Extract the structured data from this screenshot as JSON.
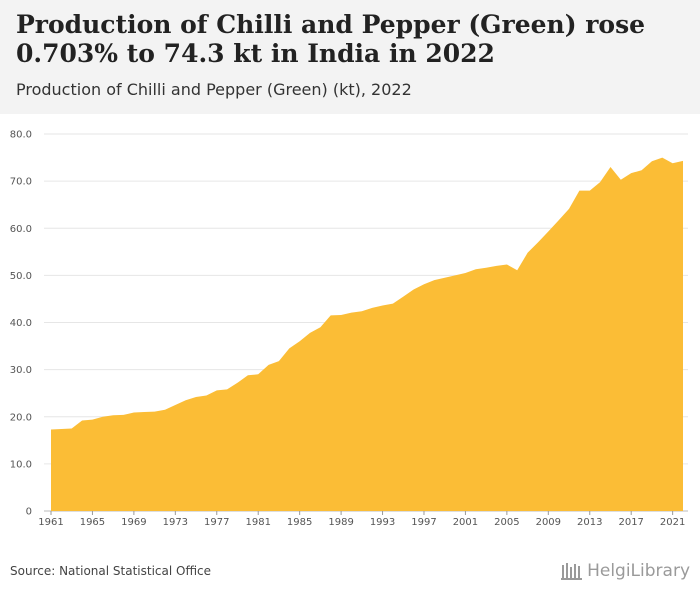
{
  "header": {
    "title": "Production of Chilli and Pepper (Green) rose 0.703% to 74.3 kt in India in 2022",
    "subtitle": "Production of Chilli and Pepper (Green) (kt), 2022"
  },
  "footer": {
    "source": "Source: National Statistical Office",
    "logo_text": "HelgiLibrary"
  },
  "colors": {
    "area_fill": "#fbbd36",
    "grid": "#e6e6e6",
    "header_bg": "#f3f3f3"
  },
  "chart_data": {
    "type": "area",
    "title": "Production of Chilli and Pepper (Green) (kt), 2022",
    "xlabel": "",
    "ylabel": "",
    "unit": "kt",
    "grid": true,
    "ylim": [
      0,
      80
    ],
    "yticks": [
      "0",
      "10.0",
      "20.0",
      "30.0",
      "40.0",
      "50.0",
      "60.0",
      "70.0",
      "80.0"
    ],
    "xticks": [
      "1961",
      "1965",
      "1969",
      "1973",
      "1977",
      "1981",
      "1985",
      "1989",
      "1993",
      "1997",
      "2001",
      "2005",
      "2009",
      "2013",
      "2017",
      "2021"
    ],
    "x": [
      1961,
      1962,
      1963,
      1964,
      1965,
      1966,
      1967,
      1968,
      1969,
      1970,
      1971,
      1972,
      1973,
      1974,
      1975,
      1976,
      1977,
      1978,
      1979,
      1980,
      1981,
      1982,
      1983,
      1984,
      1985,
      1986,
      1987,
      1988,
      1989,
      1990,
      1991,
      1992,
      1993,
      1994,
      1995,
      1996,
      1997,
      1998,
      1999,
      2000,
      2001,
      2002,
      2003,
      2004,
      2005,
      2006,
      2007,
      2008,
      2009,
      2010,
      2011,
      2012,
      2013,
      2014,
      2015,
      2016,
      2017,
      2018,
      2019,
      2020,
      2021,
      2022
    ],
    "values": [
      17.3,
      17.4,
      17.5,
      19.2,
      19.4,
      20.0,
      20.3,
      20.4,
      20.9,
      21.0,
      21.1,
      21.5,
      22.5,
      23.5,
      24.2,
      24.5,
      25.6,
      25.8,
      27.2,
      28.8,
      29.0,
      31.0,
      31.8,
      34.5,
      36.0,
      37.8,
      39.0,
      41.5,
      41.6,
      42.1,
      42.4,
      43.1,
      43.6,
      44.0,
      45.5,
      47.0,
      48.1,
      49.0,
      49.5,
      50.0,
      50.5,
      51.3,
      51.6,
      52.0,
      52.3,
      51.1,
      54.8,
      57.0,
      59.3,
      61.7,
      64.1,
      68.0,
      68.0,
      69.8,
      73.0,
      70.3,
      71.7,
      72.3,
      74.2,
      75.0,
      73.8,
      74.3
    ]
  }
}
